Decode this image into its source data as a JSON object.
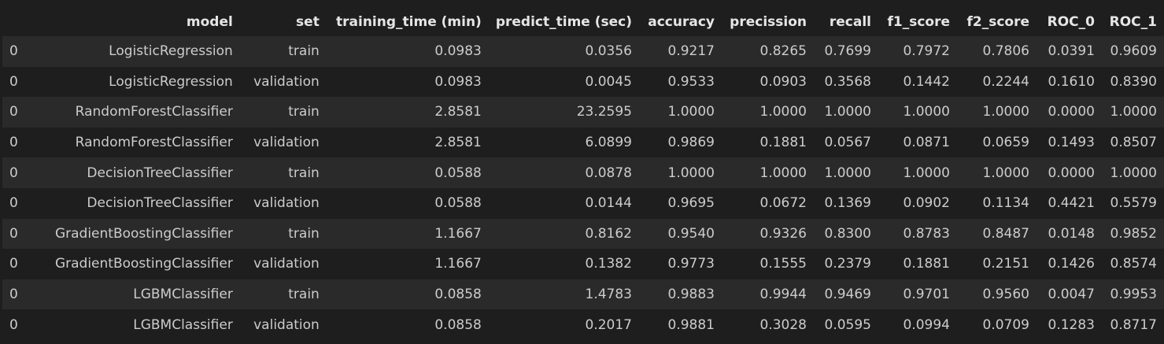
{
  "table": {
    "index_header": "",
    "columns": [
      "model",
      "set",
      "training_time (min)",
      "predict_time (sec)",
      "accuracy",
      "precission",
      "recall",
      "f1_score",
      "f2_score",
      "ROC_0",
      "ROC_1"
    ],
    "rows": [
      {
        "index": "0",
        "cells": [
          "LogisticRegression",
          "train",
          "0.0983",
          "0.0356",
          "0.9217",
          "0.8265",
          "0.7699",
          "0.7972",
          "0.7806",
          "0.0391",
          "0.9609"
        ]
      },
      {
        "index": "0",
        "cells": [
          "LogisticRegression",
          "validation",
          "0.0983",
          "0.0045",
          "0.9533",
          "0.0903",
          "0.3568",
          "0.1442",
          "0.2244",
          "0.1610",
          "0.8390"
        ]
      },
      {
        "index": "0",
        "cells": [
          "RandomForestClassifier",
          "train",
          "2.8581",
          "23.2595",
          "1.0000",
          "1.0000",
          "1.0000",
          "1.0000",
          "1.0000",
          "0.0000",
          "1.0000"
        ]
      },
      {
        "index": "0",
        "cells": [
          "RandomForestClassifier",
          "validation",
          "2.8581",
          "6.0899",
          "0.9869",
          "0.1881",
          "0.0567",
          "0.0871",
          "0.0659",
          "0.1493",
          "0.8507"
        ]
      },
      {
        "index": "0",
        "cells": [
          "DecisionTreeClassifier",
          "train",
          "0.0588",
          "0.0878",
          "1.0000",
          "1.0000",
          "1.0000",
          "1.0000",
          "1.0000",
          "0.0000",
          "1.0000"
        ]
      },
      {
        "index": "0",
        "cells": [
          "DecisionTreeClassifier",
          "validation",
          "0.0588",
          "0.0144",
          "0.9695",
          "0.0672",
          "0.1369",
          "0.0902",
          "0.1134",
          "0.4421",
          "0.5579"
        ]
      },
      {
        "index": "0",
        "cells": [
          "GradientBoostingClassifier",
          "train",
          "1.1667",
          "0.8162",
          "0.9540",
          "0.9326",
          "0.8300",
          "0.8783",
          "0.8487",
          "0.0148",
          "0.9852"
        ]
      },
      {
        "index": "0",
        "cells": [
          "GradientBoostingClassifier",
          "validation",
          "1.1667",
          "0.1382",
          "0.9773",
          "0.1555",
          "0.2379",
          "0.1881",
          "0.2151",
          "0.1426",
          "0.8574"
        ]
      },
      {
        "index": "0",
        "cells": [
          "LGBMClassifier",
          "train",
          "0.0858",
          "1.4783",
          "0.9883",
          "0.9944",
          "0.9469",
          "0.9701",
          "0.9560",
          "0.0047",
          "0.9953"
        ]
      },
      {
        "index": "0",
        "cells": [
          "LGBMClassifier",
          "validation",
          "0.0858",
          "0.2017",
          "0.9881",
          "0.3028",
          "0.0595",
          "0.0994",
          "0.0709",
          "0.1283",
          "0.8717"
        ]
      }
    ]
  },
  "colors": {
    "background": "#1e1e1e",
    "row_stripe": "#2a2a2a",
    "header_text": "#e6e6e6",
    "cell_text": "#cccccc"
  }
}
